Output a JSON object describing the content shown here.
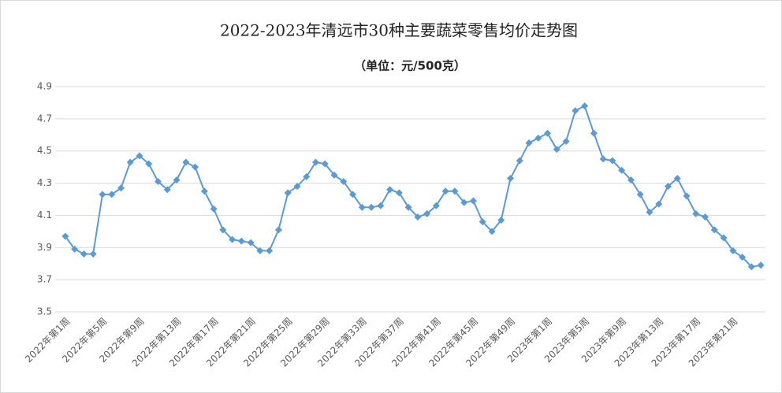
{
  "chart_data": {
    "type": "line",
    "title": "2022-2023年清远市30种主要蔬菜零售均价走势图",
    "subtitle": "（单位：元/500克）",
    "categories": [
      "2022年第1周",
      null,
      null,
      null,
      "2022年第5周",
      null,
      null,
      null,
      "2022年第9周",
      null,
      null,
      null,
      "2022年第13周",
      null,
      null,
      null,
      "2022年第17周",
      null,
      null,
      null,
      "2022年第21周",
      null,
      null,
      null,
      "2022年第25周",
      null,
      null,
      null,
      "2022年第29周",
      null,
      null,
      null,
      "2022年第33周",
      null,
      null,
      null,
      "2022年第37周",
      null,
      null,
      null,
      "2022年第41周",
      null,
      null,
      null,
      "2022年第45周",
      null,
      null,
      null,
      "2022年第49周",
      null,
      null,
      null,
      "2023年第1周",
      null,
      null,
      null,
      "2023年第5周",
      null,
      null,
      null,
      "2023年第9周",
      null,
      null,
      null,
      "2023年第13周",
      null,
      null,
      null,
      "2023年第17周",
      null,
      null,
      null,
      "2023年第21周",
      null,
      null,
      null
    ],
    "series": [
      {
        "name": null,
        "color": "#5b9bd5",
        "values": [
          3.97,
          3.89,
          3.86,
          3.86,
          4.23,
          4.23,
          4.27,
          4.43,
          4.47,
          4.42,
          4.31,
          4.26,
          4.32,
          4.43,
          4.4,
          4.25,
          4.14,
          4.01,
          3.95,
          3.94,
          3.93,
          3.88,
          3.88,
          4.01,
          4.24,
          4.28,
          4.34,
          4.43,
          4.42,
          4.35,
          4.31,
          4.23,
          4.15,
          4.15,
          4.16,
          4.26,
          4.24,
          4.15,
          4.09,
          4.11,
          4.16,
          4.25,
          4.25,
          4.18,
          4.19,
          4.06,
          4.0,
          4.07,
          4.33,
          4.44,
          4.55,
          4.58,
          4.61,
          4.51,
          4.56,
          4.75,
          4.78,
          4.61,
          4.45,
          4.44,
          4.38,
          4.32,
          4.23,
          4.12,
          4.17,
          4.28,
          4.33,
          4.22,
          4.11,
          4.09,
          4.01,
          3.96,
          3.88,
          3.84,
          3.78,
          3.79
        ]
      }
    ],
    "ylim": [
      3.5,
      4.9
    ],
    "yticks": [
      3.5,
      3.7,
      3.9,
      4.1,
      4.3,
      4.5,
      4.7,
      4.9
    ],
    "grid": true
  }
}
